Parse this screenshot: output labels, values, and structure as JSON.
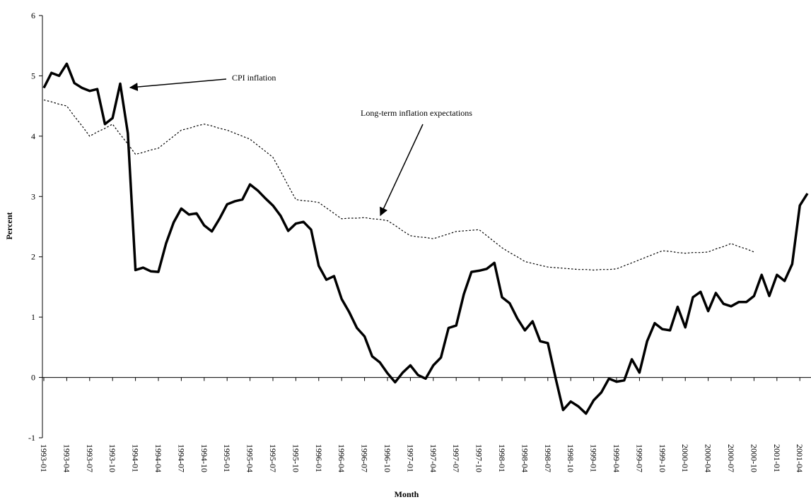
{
  "chart_data": {
    "type": "line",
    "x_label": "Month",
    "y_label": "Percent",
    "categories": [
      "1993-01",
      null,
      null,
      "1993-04",
      null,
      null,
      "1993-07",
      null,
      null,
      "1993-10",
      null,
      null,
      "1994-01",
      null,
      null,
      "1994-04",
      null,
      null,
      "1994-07",
      null,
      null,
      "1994-10",
      null,
      null,
      "1995-01",
      null,
      null,
      "1995-04",
      null,
      null,
      "1995-07",
      null,
      null,
      "1995-10",
      null,
      null,
      "1996-01",
      null,
      null,
      "1996-04",
      null,
      null,
      "1996-07",
      null,
      null,
      "1996-10",
      null,
      null,
      "1997-01",
      null,
      null,
      "1997-04",
      null,
      null,
      "1997-07",
      null,
      null,
      "1997-10",
      null,
      null,
      "1998-01",
      null,
      null,
      "1998-04",
      null,
      null,
      "1998-07",
      null,
      null,
      "1998-10",
      null,
      null,
      "1999-01",
      null,
      null,
      "1999-04",
      null,
      null,
      "1999-07",
      null,
      null,
      "1999-10",
      null,
      null,
      "2000-01",
      null,
      null,
      "2000-04",
      null,
      null,
      "2000-07",
      null,
      null,
      "2000-10",
      null,
      null,
      "2001-01",
      null,
      null,
      "2001-04",
      null
    ],
    "series": [
      {
        "name": "CPI inflation",
        "color": "#000000",
        "style": "solid",
        "values": [
          4.8,
          5.05,
          5.0,
          5.2,
          4.88,
          4.8,
          4.75,
          4.78,
          4.2,
          4.3,
          4.87,
          4.05,
          1.78,
          1.82,
          1.76,
          1.75,
          2.22,
          2.57,
          2.8,
          2.7,
          2.72,
          2.52,
          2.42,
          2.63,
          2.87,
          2.92,
          2.95,
          3.2,
          3.1,
          2.97,
          2.85,
          2.68,
          2.43,
          2.55,
          2.58,
          2.45,
          1.85,
          1.62,
          1.68,
          1.3,
          1.08,
          0.82,
          0.68,
          0.35,
          0.25,
          0.07,
          -0.08,
          0.08,
          0.2,
          0.04,
          -0.02,
          0.2,
          0.33,
          0.82,
          0.86,
          1.38,
          1.75,
          1.77,
          1.8,
          1.9,
          1.33,
          1.23,
          0.98,
          0.78,
          0.93,
          0.6,
          0.57,
          0.0,
          -0.54,
          -0.4,
          -0.48,
          -0.6,
          -0.38,
          -0.25,
          -0.02,
          -0.07,
          -0.05,
          0.3,
          0.08,
          0.6,
          0.9,
          0.8,
          0.78,
          1.17,
          0.83,
          1.33,
          1.42,
          1.1,
          1.4,
          1.22,
          1.18,
          1.25,
          1.25,
          1.35,
          1.7,
          1.35,
          1.7,
          1.6,
          1.88,
          2.85,
          3.05
        ]
      },
      {
        "name": "Long-term inflation expectations",
        "color": "#000000",
        "style": "dotted",
        "values": [
          4.6,
          4.57,
          4.53,
          4.5,
          4.33,
          4.17,
          4.0,
          4.07,
          4.13,
          4.2,
          4.03,
          3.87,
          3.7,
          3.73,
          3.77,
          3.8,
          3.9,
          4.0,
          4.1,
          4.13,
          4.17,
          4.2,
          4.17,
          4.13,
          4.1,
          4.05,
          4.0,
          3.95,
          3.85,
          3.75,
          3.65,
          3.42,
          3.18,
          2.95,
          2.93,
          2.92,
          2.9,
          2.81,
          2.72,
          2.63,
          2.64,
          2.64,
          2.65,
          2.63,
          2.62,
          2.6,
          2.52,
          2.43,
          2.35,
          2.33,
          2.32,
          2.3,
          2.34,
          2.38,
          2.42,
          2.43,
          2.44,
          2.45,
          2.35,
          2.25,
          2.15,
          2.07,
          2.0,
          1.92,
          1.89,
          1.86,
          1.83,
          1.82,
          1.81,
          1.8,
          1.79,
          1.79,
          1.78,
          1.79,
          1.79,
          1.8,
          1.85,
          1.9,
          1.95,
          2.0,
          2.05,
          2.1,
          2.09,
          2.07,
          2.06,
          2.07,
          2.07,
          2.08,
          2.13,
          2.17,
          2.22,
          2.17,
          2.13,
          2.08,
          null,
          null,
          null,
          null,
          null,
          null,
          null
        ]
      }
    ],
    "ylim": [
      -1,
      6
    ],
    "yticks": [
      -1,
      0,
      1,
      2,
      3,
      4,
      5,
      6
    ]
  }
}
